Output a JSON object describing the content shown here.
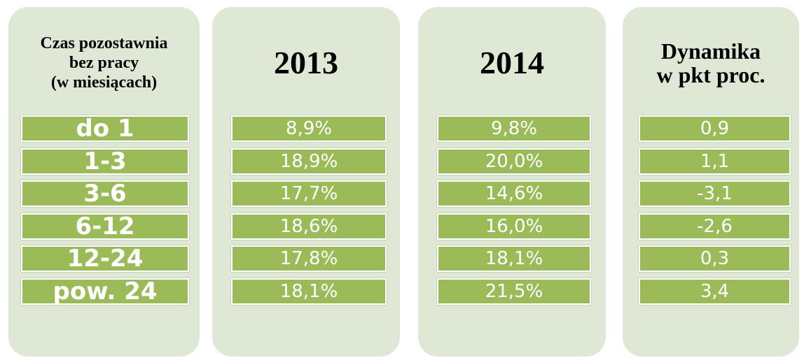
{
  "columns": [
    {
      "header": [
        "Czas pozostawnia",
        "bez pracy",
        "(w miesiącach)"
      ],
      "cells": [
        "do 1",
        "1-3",
        "3-6",
        "6-12",
        "12-24",
        "pow. 24"
      ]
    },
    {
      "header": [
        "2013"
      ],
      "cells": [
        "8,9%",
        "18,9%",
        "17,7%",
        "18,6%",
        "17,8%",
        "18,1%"
      ]
    },
    {
      "header": [
        "2014"
      ],
      "cells": [
        "9,8%",
        "20,0%",
        "14,6%",
        "16,0%",
        "18,1%",
        "21,5%"
      ]
    },
    {
      "header": [
        "Dynamika",
        "w pkt proc."
      ],
      "cells": [
        "0,9",
        "1,1",
        "-3,1",
        "-2,6",
        "0,3",
        "3,4"
      ]
    }
  ]
}
